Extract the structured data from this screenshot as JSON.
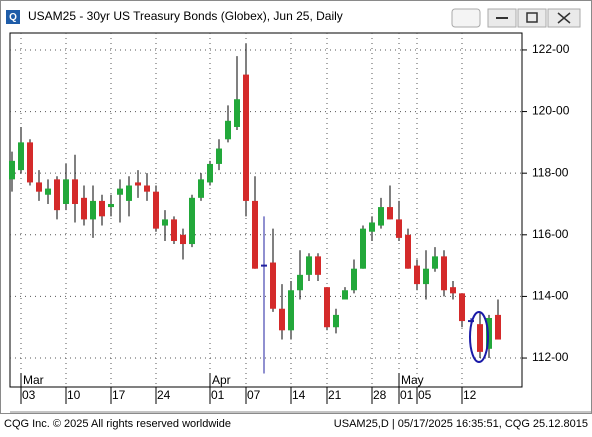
{
  "window_title": "USAM25 - 30yr US Treasury Bonds (Globex), Jun 25, Daily",
  "footer_left": "CQG Inc. © 2025 All rights reserved worldwide",
  "footer_right": "USAM25,D | 05/17/2025 16:35:51, CQG 25.12.8015",
  "chart_data": {
    "type": "candlestick",
    "categories": [
      null,
      "03",
      null,
      null,
      null,
      null,
      "10",
      null,
      null,
      null,
      null,
      "17",
      null,
      null,
      null,
      null,
      "24",
      null,
      null,
      null,
      null,
      null,
      "01",
      null,
      null,
      null,
      "07",
      null,
      null,
      null,
      null,
      "14",
      null,
      null,
      null,
      "21",
      null,
      null,
      null,
      null,
      "28",
      null,
      null,
      "01",
      null,
      "05",
      null,
      null,
      null,
      null,
      "12",
      null,
      null,
      null,
      null
    ],
    "months": [
      null,
      "Mar",
      null,
      null,
      null,
      null,
      null,
      null,
      null,
      null,
      null,
      null,
      null,
      null,
      null,
      null,
      null,
      null,
      null,
      null,
      null,
      null,
      "Apr",
      null,
      null,
      null,
      null,
      null,
      null,
      null,
      null,
      null,
      null,
      null,
      null,
      null,
      null,
      null,
      null,
      null,
      null,
      null,
      null,
      "May",
      null,
      null,
      null,
      null,
      null,
      null,
      null,
      null,
      null,
      null,
      null
    ],
    "open": [
      117.8,
      118.1,
      119.0,
      117.7,
      117.3,
      117.8,
      117.0,
      117.8,
      117.2,
      116.5,
      117.1,
      116.9,
      117.3,
      117.1,
      117.7,
      117.6,
      117.4,
      116.3,
      116.5,
      116.0,
      115.7,
      117.2,
      117.7,
      118.3,
      119.1,
      119.5,
      121.2,
      117.1,
      115.0,
      115.1,
      113.6,
      112.9,
      114.2,
      114.7,
      115.3,
      114.3,
      113.0,
      113.9,
      114.2,
      114.9,
      116.1,
      116.3,
      116.9,
      116.5,
      116.0,
      115.0,
      114.4,
      114.9,
      115.3,
      114.3,
      114.1,
      113.2,
      113.1,
      112.3,
      113.4
    ],
    "high": [
      118.7,
      119.5,
      119.1,
      118.1,
      117.8,
      117.9,
      118.3,
      118.6,
      117.6,
      117.6,
      117.3,
      117.3,
      117.8,
      117.9,
      118.1,
      118.0,
      117.6,
      116.8,
      116.6,
      116.2,
      117.3,
      118.0,
      118.4,
      119.1,
      120.2,
      121.8,
      122.2,
      117.9,
      116.6,
      116.2,
      114.4,
      114.5,
      115.5,
      115.4,
      115.4,
      114.3,
      113.6,
      114.3,
      115.2,
      116.3,
      116.6,
      117.2,
      117.6,
      117.1,
      116.2,
      115.2,
      115.5,
      115.6,
      115.5,
      114.5,
      114.1,
      113.3,
      113.5,
      113.4,
      113.9
    ],
    "low": [
      117.4,
      118.0,
      117.6,
      117.1,
      117.0,
      116.5,
      116.8,
      116.4,
      116.3,
      115.9,
      116.3,
      116.6,
      116.4,
      116.6,
      117.2,
      117.1,
      116.1,
      115.8,
      115.7,
      115.2,
      115.6,
      117.1,
      117.6,
      118.1,
      119.0,
      119.4,
      116.6,
      114.9,
      111.5,
      113.5,
      112.6,
      112.6,
      113.9,
      114.5,
      114.5,
      112.9,
      112.8,
      113.9,
      114.1,
      114.9,
      115.8,
      116.2,
      116.5,
      115.8,
      114.9,
      114.2,
      113.9,
      114.8,
      114.0,
      113.9,
      113.0,
      113.1,
      112.0,
      112.0,
      112.6
    ],
    "close": [
      118.4,
      119.0,
      117.7,
      117.4,
      117.5,
      116.8,
      117.8,
      117.0,
      116.5,
      117.1,
      116.6,
      117.0,
      117.5,
      117.6,
      117.6,
      117.4,
      116.2,
      116.5,
      115.8,
      115.7,
      117.2,
      117.8,
      118.3,
      118.8,
      119.7,
      120.4,
      117.1,
      114.9,
      115.0,
      113.6,
      112.9,
      114.2,
      114.7,
      115.3,
      114.7,
      113.0,
      113.4,
      114.2,
      114.9,
      116.2,
      116.4,
      116.9,
      116.5,
      115.9,
      114.9,
      114.4,
      114.9,
      115.3,
      114.2,
      114.1,
      113.2,
      113.2,
      112.2,
      113.3,
      112.6
    ],
    "up_color": "#22a83a",
    "down_color": "#d42a2a",
    "doji_color": "#2020a0",
    "ylim": [
      111.06,
      122.55
    ],
    "yticks": [
      {
        "value": 112,
        "label": "112-00"
      },
      {
        "value": 114,
        "label": "114-00"
      },
      {
        "value": 116,
        "label": "116-00"
      },
      {
        "value": 118,
        "label": "118-00"
      },
      {
        "value": 120,
        "label": "120-00"
      },
      {
        "value": 122,
        "label": "122-00"
      }
    ],
    "grid": true
  }
}
